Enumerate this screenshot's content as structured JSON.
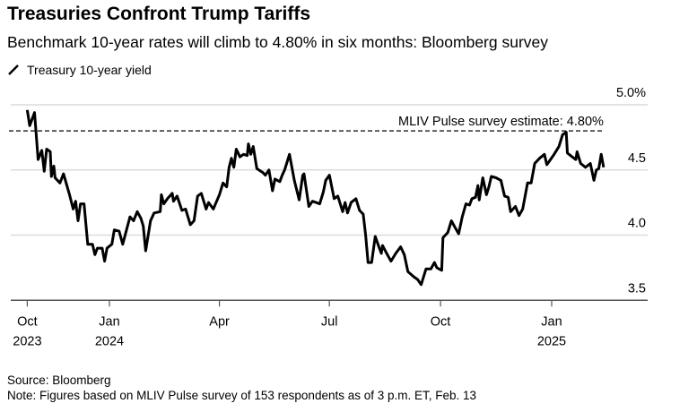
{
  "title": "Treasuries Confront Trump Tariffs",
  "subtitle": "Benchmark 10-year rates will climb to 4.80% in six months: Bloomberg survey",
  "footer": {
    "source": "Source: Bloomberg",
    "note": "Note: Figures based on MLIV Pulse survey of 153 respondents as of 3 p.m. ET, Feb. 13"
  },
  "chart_data": {
    "type": "line",
    "title": "Treasuries Confront Trump Tariffs",
    "xlabel": "",
    "ylabel": "",
    "ylim": [
      3.5,
      5.0
    ],
    "y_ticks": [
      {
        "value": 5.0,
        "label": "5.0%"
      },
      {
        "value": 4.5,
        "label": "4.5"
      },
      {
        "value": 4.0,
        "label": "4.0"
      },
      {
        "value": 3.5,
        "label": "3.5"
      }
    ],
    "x_ticks": [
      {
        "date": "2023-10-25",
        "label": "Oct",
        "year": "2023"
      },
      {
        "date": "2024-01-01",
        "label": "Jan",
        "year": "2024"
      },
      {
        "date": "2024-04-01",
        "label": "Apr",
        "year": ""
      },
      {
        "date": "2024-07-01",
        "label": "Jul",
        "year": ""
      },
      {
        "date": "2024-10-01",
        "label": "Oct",
        "year": ""
      },
      {
        "date": "2025-01-01",
        "label": "Jan",
        "year": "2025"
      }
    ],
    "grid": true,
    "legend_position": "top-left",
    "reference_line": {
      "value": 4.8,
      "label": "MLIV Pulse survey estimate: 4.80%",
      "style": "dashed"
    },
    "series": [
      {
        "name": "Treasury 10-year yield",
        "color": "#000000",
        "points": [
          [
            "2023-10-25",
            4.96
          ],
          [
            "2023-10-27",
            4.84
          ],
          [
            "2023-10-31",
            4.94
          ],
          [
            "2023-11-03",
            4.58
          ],
          [
            "2023-11-06",
            4.65
          ],
          [
            "2023-11-08",
            4.49
          ],
          [
            "2023-11-10",
            4.66
          ],
          [
            "2023-11-13",
            4.64
          ],
          [
            "2023-11-14",
            4.45
          ],
          [
            "2023-11-16",
            4.53
          ],
          [
            "2023-11-17",
            4.44
          ],
          [
            "2023-11-21",
            4.4
          ],
          [
            "2023-11-24",
            4.47
          ],
          [
            "2023-11-29",
            4.31
          ],
          [
            "2023-12-02",
            4.2
          ],
          [
            "2023-12-04",
            4.26
          ],
          [
            "2023-12-06",
            4.11
          ],
          [
            "2023-12-08",
            4.24
          ],
          [
            "2023-12-11",
            4.24
          ],
          [
            "2023-12-14",
            3.93
          ],
          [
            "2023-12-18",
            3.93
          ],
          [
            "2023-12-20",
            3.85
          ],
          [
            "2023-12-22",
            3.9
          ],
          [
            "2023-12-26",
            3.9
          ],
          [
            "2023-12-28",
            3.8
          ],
          [
            "2023-12-30",
            3.9
          ],
          [
            "2024-01-03",
            3.93
          ],
          [
            "2024-01-05",
            4.04
          ],
          [
            "2024-01-09",
            4.03
          ],
          [
            "2024-01-12",
            3.93
          ],
          [
            "2024-01-18",
            4.14
          ],
          [
            "2024-01-21",
            4.11
          ],
          [
            "2024-01-24",
            4.18
          ],
          [
            "2024-01-27",
            4.13
          ],
          [
            "2024-01-29",
            4.07
          ],
          [
            "2024-01-31",
            3.88
          ],
          [
            "2024-02-04",
            4.11
          ],
          [
            "2024-02-07",
            4.17
          ],
          [
            "2024-02-12",
            4.18
          ],
          [
            "2024-02-13",
            4.31
          ],
          [
            "2024-02-15",
            4.24
          ],
          [
            "2024-02-18",
            4.28
          ],
          [
            "2024-02-22",
            4.32
          ],
          [
            "2024-02-23",
            4.26
          ],
          [
            "2024-02-26",
            4.3
          ],
          [
            "2024-03-01",
            4.19
          ],
          [
            "2024-03-04",
            4.2
          ],
          [
            "2024-03-08",
            4.08
          ],
          [
            "2024-03-11",
            4.11
          ],
          [
            "2024-03-14",
            4.3
          ],
          [
            "2024-03-17",
            4.32
          ],
          [
            "2024-03-21",
            4.2
          ],
          [
            "2024-03-23",
            4.25
          ],
          [
            "2024-03-27",
            4.2
          ],
          [
            "2024-04-01",
            4.31
          ],
          [
            "2024-04-04",
            4.4
          ],
          [
            "2024-04-07",
            4.37
          ],
          [
            "2024-04-09",
            4.52
          ],
          [
            "2024-04-11",
            4.59
          ],
          [
            "2024-04-13",
            4.52
          ],
          [
            "2024-04-15",
            4.66
          ],
          [
            "2024-04-18",
            4.6
          ],
          [
            "2024-04-21",
            4.62
          ],
          [
            "2024-04-24",
            4.61
          ],
          [
            "2024-04-25",
            4.7
          ],
          [
            "2024-04-27",
            4.62
          ],
          [
            "2024-04-29",
            4.68
          ],
          [
            "2024-05-02",
            4.51
          ],
          [
            "2024-05-07",
            4.48
          ],
          [
            "2024-05-09",
            4.46
          ],
          [
            "2024-05-12",
            4.5
          ],
          [
            "2024-05-15",
            4.34
          ],
          [
            "2024-05-17",
            4.43
          ],
          [
            "2024-05-21",
            4.41
          ],
          [
            "2024-05-23",
            4.46
          ],
          [
            "2024-05-25",
            4.5
          ],
          [
            "2024-05-29",
            4.62
          ],
          [
            "2024-06-02",
            4.42
          ],
          [
            "2024-06-06",
            4.27
          ],
          [
            "2024-06-09",
            4.46
          ],
          [
            "2024-06-10",
            4.47
          ],
          [
            "2024-06-14",
            4.22
          ],
          [
            "2024-06-17",
            4.26
          ],
          [
            "2024-06-20",
            4.25
          ],
          [
            "2024-06-23",
            4.24
          ],
          [
            "2024-06-26",
            4.33
          ],
          [
            "2024-06-28",
            4.42
          ],
          [
            "2024-07-01",
            4.46
          ],
          [
            "2024-07-05",
            4.28
          ],
          [
            "2024-07-08",
            4.3
          ],
          [
            "2024-07-12",
            4.18
          ],
          [
            "2024-07-14",
            4.25
          ],
          [
            "2024-07-16",
            4.17
          ],
          [
            "2024-07-19",
            4.25
          ],
          [
            "2024-07-23",
            4.28
          ],
          [
            "2024-07-26",
            4.19
          ],
          [
            "2024-07-29",
            4.16
          ],
          [
            "2024-07-31",
            4.0
          ],
          [
            "2024-08-02",
            3.79
          ],
          [
            "2024-08-05",
            3.79
          ],
          [
            "2024-08-08",
            3.99
          ],
          [
            "2024-08-11",
            3.91
          ],
          [
            "2024-08-13",
            3.86
          ],
          [
            "2024-08-14",
            3.92
          ],
          [
            "2024-08-18",
            3.85
          ],
          [
            "2024-08-21",
            3.8
          ],
          [
            "2024-08-25",
            3.86
          ],
          [
            "2024-08-29",
            3.91
          ],
          [
            "2024-09-01",
            3.85
          ],
          [
            "2024-09-04",
            3.72
          ],
          [
            "2024-09-09",
            3.68
          ],
          [
            "2024-09-12",
            3.66
          ],
          [
            "2024-09-15",
            3.62
          ],
          [
            "2024-09-19",
            3.74
          ],
          [
            "2024-09-23",
            3.74
          ],
          [
            "2024-09-26",
            3.79
          ],
          [
            "2024-09-28",
            3.75
          ],
          [
            "2024-10-02",
            3.73
          ],
          [
            "2024-10-03",
            3.98
          ],
          [
            "2024-10-07",
            4.02
          ],
          [
            "2024-10-10",
            4.11
          ],
          [
            "2024-10-13",
            4.06
          ],
          [
            "2024-10-16",
            4.01
          ],
          [
            "2024-10-19",
            4.14
          ],
          [
            "2024-10-22",
            4.24
          ],
          [
            "2024-10-25",
            4.23
          ],
          [
            "2024-10-27",
            4.28
          ],
          [
            "2024-10-30",
            4.29
          ],
          [
            "2024-11-01",
            4.38
          ],
          [
            "2024-11-02",
            4.27
          ],
          [
            "2024-11-05",
            4.44
          ],
          [
            "2024-11-08",
            4.31
          ],
          [
            "2024-11-10",
            4.37
          ],
          [
            "2024-11-12",
            4.45
          ],
          [
            "2024-11-16",
            4.44
          ],
          [
            "2024-11-20",
            4.42
          ],
          [
            "2024-11-23",
            4.3
          ],
          [
            "2024-11-26",
            4.29
          ],
          [
            "2024-11-28",
            4.18
          ],
          [
            "2024-12-02",
            4.22
          ],
          [
            "2024-12-05",
            4.15
          ],
          [
            "2024-12-08",
            4.2
          ],
          [
            "2024-12-12",
            4.4
          ],
          [
            "2024-12-15",
            4.4
          ],
          [
            "2024-12-18",
            4.55
          ],
          [
            "2024-12-22",
            4.59
          ],
          [
            "2024-12-26",
            4.62
          ],
          [
            "2024-12-28",
            4.54
          ],
          [
            "2024-12-31",
            4.58
          ],
          [
            "2025-01-03",
            4.62
          ],
          [
            "2025-01-07",
            4.68
          ],
          [
            "2025-01-10",
            4.77
          ],
          [
            "2025-01-13",
            4.79
          ],
          [
            "2025-01-14",
            4.63
          ],
          [
            "2025-01-18",
            4.6
          ],
          [
            "2025-01-21",
            4.58
          ],
          [
            "2025-01-22",
            4.64
          ],
          [
            "2025-01-25",
            4.55
          ],
          [
            "2025-01-29",
            4.52
          ],
          [
            "2025-02-02",
            4.55
          ],
          [
            "2025-02-05",
            4.42
          ],
          [
            "2025-02-07",
            4.5
          ],
          [
            "2025-02-09",
            4.51
          ],
          [
            "2025-02-11",
            4.62
          ],
          [
            "2025-02-13",
            4.52
          ]
        ]
      }
    ]
  }
}
